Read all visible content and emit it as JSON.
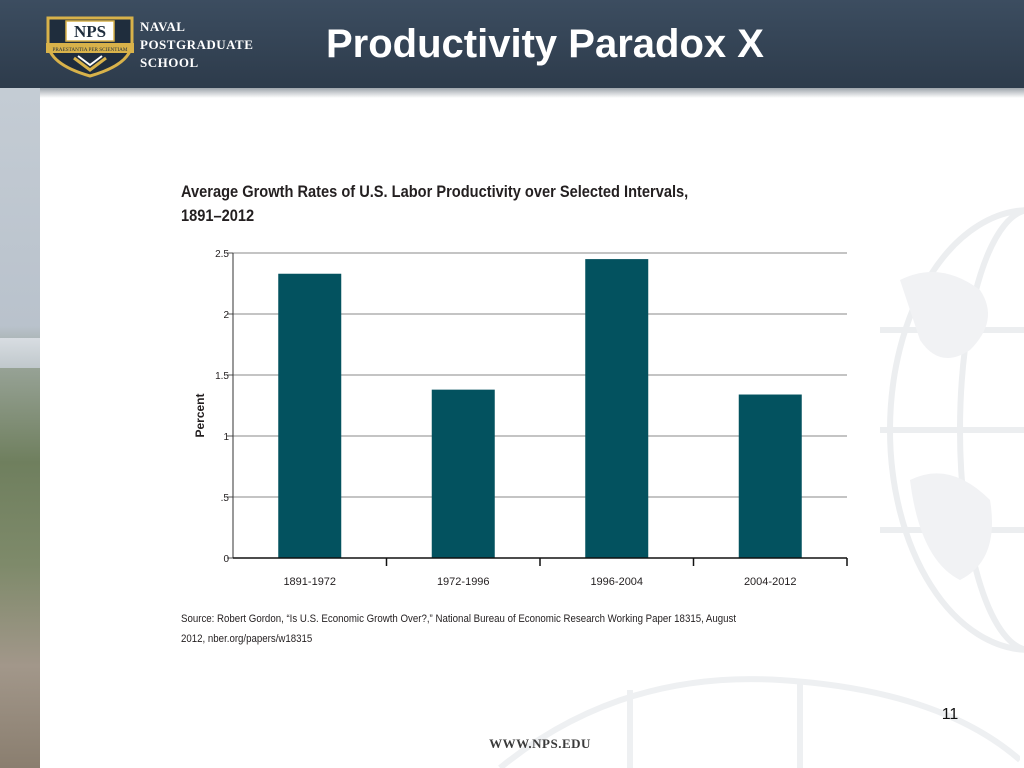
{
  "header": {
    "title": "Productivity Paradox X",
    "logo_badge": "NPS",
    "logo_motto": "PRAESTANTIA PER SCIENTIAM",
    "logo_lines": [
      "NAVAL",
      "POSTGRADUATE",
      "SCHOOL"
    ]
  },
  "chart_data": {
    "type": "bar",
    "title": "Average Growth Rates of U.S. Labor Productivity over Selected Intervals, 1891–2012",
    "title_lines": [
      "Average Growth Rates of U.S. Labor Productivity over Selected Intervals,",
      "1891–2012"
    ],
    "xlabel": "",
    "ylabel": "Percent",
    "categories": [
      "1891-1972",
      "1972-1996",
      "1996-2004",
      "2004-2012"
    ],
    "values": [
      2.33,
      1.38,
      2.45,
      1.34
    ],
    "ylim": [
      0,
      2.5
    ],
    "yticks": [
      0,
      0.5,
      1,
      1.5,
      2,
      2.5
    ],
    "ytick_labels": [
      "0",
      ".5",
      "1",
      "1.5",
      "2",
      "2.5"
    ],
    "grid": true,
    "bar_color": "#03525f"
  },
  "source": {
    "line1": "Source: Robert Gordon, “Is U.S. Economic Growth Over?,” National Bureau of Economic Research Working Paper 18315, August",
    "line2": "2012, nber.org/papers/w18315"
  },
  "footer": {
    "page_number": "11",
    "url": "WWW.NPS.EDU"
  }
}
